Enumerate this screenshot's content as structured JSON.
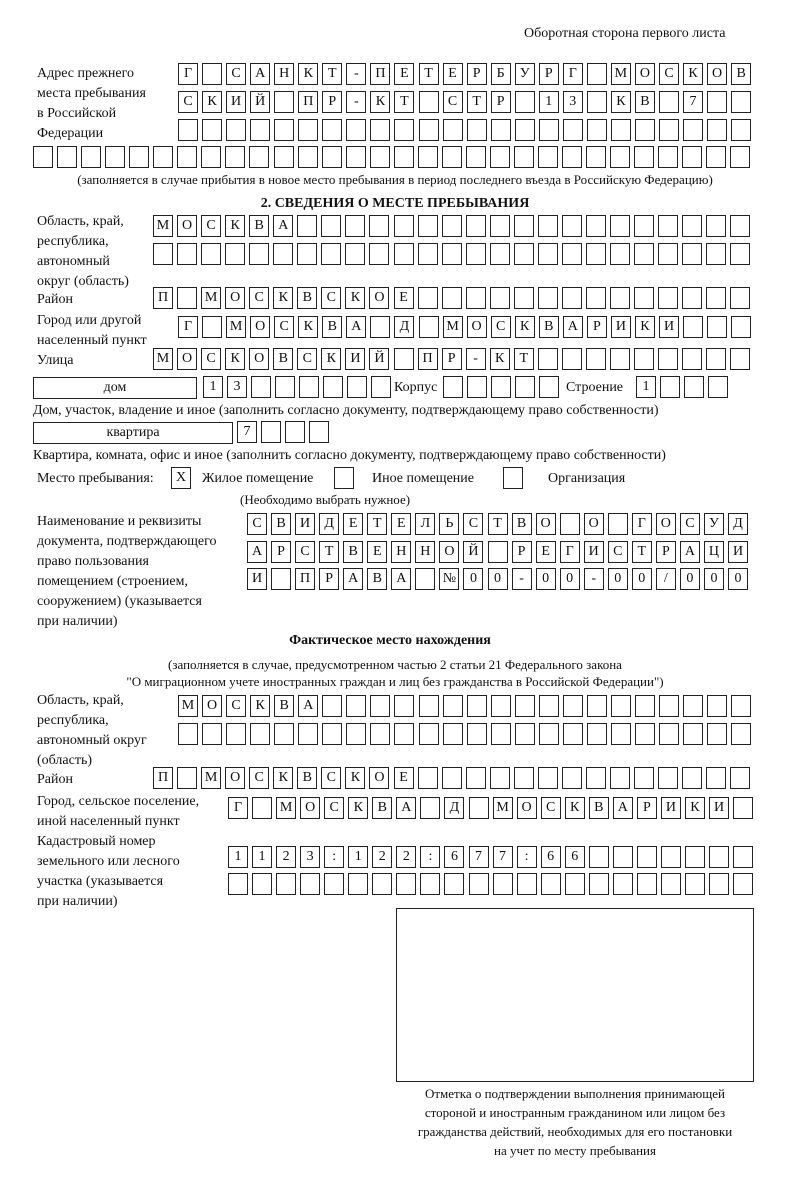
{
  "header": "Оборотная сторона первого листа",
  "prev_address": {
    "label": [
      "Адрес прежнего",
      "места пребывания",
      "в Российской",
      "Федерации"
    ],
    "rows": [
      [
        "Г",
        "",
        "С",
        "А",
        "Н",
        "К",
        "Т",
        "-",
        "П",
        "Е",
        "Т",
        "Е",
        "Р",
        "Б",
        "У",
        "Р",
        "Г",
        "",
        "М",
        "О",
        "С",
        "К",
        "О",
        "В"
      ],
      [
        "С",
        "К",
        "И",
        "Й",
        "",
        "П",
        "Р",
        "-",
        "К",
        "Т",
        "",
        "С",
        "Т",
        "Р",
        "",
        "1",
        "3",
        "",
        "К",
        "В",
        "",
        "7",
        "",
        ""
      ],
      [],
      []
    ],
    "note": "(заполняется в случае прибытия в новое место пребывания в период последнего въезда в Российскую Федерацию)"
  },
  "section2": {
    "title": "2. СВЕДЕНИЯ О МЕСТЕ ПРЕБЫВАНИЯ",
    "region_label": [
      "Область, край,",
      "республика,",
      "автономный",
      "округ (область)"
    ],
    "region_rows": [
      [
        "М",
        "О",
        "С",
        "К",
        "В",
        "А"
      ],
      []
    ],
    "district_label": "Район",
    "district": [
      "П",
      "",
      "М",
      "О",
      "С",
      "К",
      "В",
      "С",
      "К",
      "О",
      "Е"
    ],
    "city_label": [
      "Город или другой",
      "населенный пункт"
    ],
    "city": [
      "Г",
      "",
      "М",
      "О",
      "С",
      "К",
      "В",
      "А",
      "",
      "Д",
      "",
      "М",
      "О",
      "С",
      "К",
      "В",
      "А",
      "Р",
      "И",
      "К",
      "И"
    ],
    "street_label": "Улица",
    "street": [
      "М",
      "О",
      "С",
      "К",
      "О",
      "В",
      "С",
      "К",
      "И",
      "Й",
      "",
      "П",
      "Р",
      "-",
      "К",
      "Т"
    ],
    "house_type": "дом",
    "house": [
      "1",
      "3"
    ],
    "korpus_label": "Корпус",
    "korpus": [],
    "building_label": "Строение",
    "building": [
      "1"
    ],
    "house_note": "Дом, участок, владение и иное (заполнить согласно документу, подтверждающему право собственности)",
    "flat_type": "квартира",
    "flat": [
      "7"
    ],
    "flat_note": "Квартира, комната, офис и иное (заполнить согласно документу, подтверждающему право собственности)",
    "stay_label": "Место пребывания:",
    "stay_options": [
      {
        "label": "Жилое помещение",
        "checked": true,
        "mark": "Х"
      },
      {
        "label": "Иное помещение",
        "checked": false,
        "mark": ""
      },
      {
        "label": "Организация",
        "checked": false,
        "mark": ""
      }
    ],
    "stay_note": "(Необходимо выбрать нужное)",
    "doc_label": [
      "Наименование и реквизиты",
      "документа, подтверждающего",
      "право пользования",
      "помещением (строением,",
      "сооружением) (указывается",
      "при наличии)"
    ],
    "doc_rows": [
      [
        "С",
        "В",
        "И",
        "Д",
        "Е",
        "Т",
        "Е",
        "Л",
        "Ь",
        "С",
        "Т",
        "В",
        "О",
        "",
        "О",
        "",
        "Г",
        "О",
        "С",
        "У",
        "Д"
      ],
      [
        "А",
        "Р",
        "С",
        "Т",
        "В",
        "Е",
        "Н",
        "Н",
        "О",
        "Й",
        "",
        "Р",
        "Е",
        "Г",
        "И",
        "С",
        "Т",
        "Р",
        "А",
        "Ц",
        "И"
      ],
      [
        "И",
        "",
        "П",
        "Р",
        "А",
        "В",
        "А",
        "",
        "№",
        "0",
        "0",
        "-",
        "0",
        "0",
        "-",
        "0",
        "0",
        "/",
        "0",
        "0",
        "0"
      ]
    ]
  },
  "actual": {
    "title": "Фактическое место нахождения",
    "note": [
      "(заполняется в случае, предусмотренном частью 2 статьи 21 Федерального закона",
      "\"О миграционном учете иностранных граждан и лиц без гражданства в Российской Федерации\")"
    ],
    "region_label": [
      "Область, край,",
      "республика,",
      "автономный округ",
      "(область)"
    ],
    "region_rows": [
      [
        "М",
        "О",
        "С",
        "К",
        "В",
        "А"
      ],
      []
    ],
    "district_label": "Район",
    "district": [
      "П",
      "",
      "М",
      "О",
      "С",
      "К",
      "В",
      "С",
      "К",
      "О",
      "Е"
    ],
    "city_label": [
      "Город, сельское поселение,",
      "иной населенный пункт"
    ],
    "city": [
      "Г",
      "",
      "М",
      "О",
      "С",
      "К",
      "В",
      "А",
      "",
      "Д",
      "",
      "М",
      "О",
      "С",
      "К",
      "В",
      "А",
      "Р",
      "И",
      "К",
      "И"
    ],
    "cadastral_label": [
      "Кадастровый номер",
      "земельного или лесного",
      "участка (указывается",
      "при наличии)"
    ],
    "cadastral_rows": [
      [
        "1",
        "1",
        "2",
        "3",
        ":",
        "1",
        "2",
        "2",
        ":",
        "6",
        "7",
        "7",
        ":",
        "6",
        "6"
      ],
      []
    ],
    "stamp_caption": [
      "Отметка о подтверждении выполнения принимающей",
      "стороной и иностранным гражданином или лицом без",
      "гражданства действий, необходимых для его постановки",
      "на учет по месту пребывания"
    ]
  }
}
